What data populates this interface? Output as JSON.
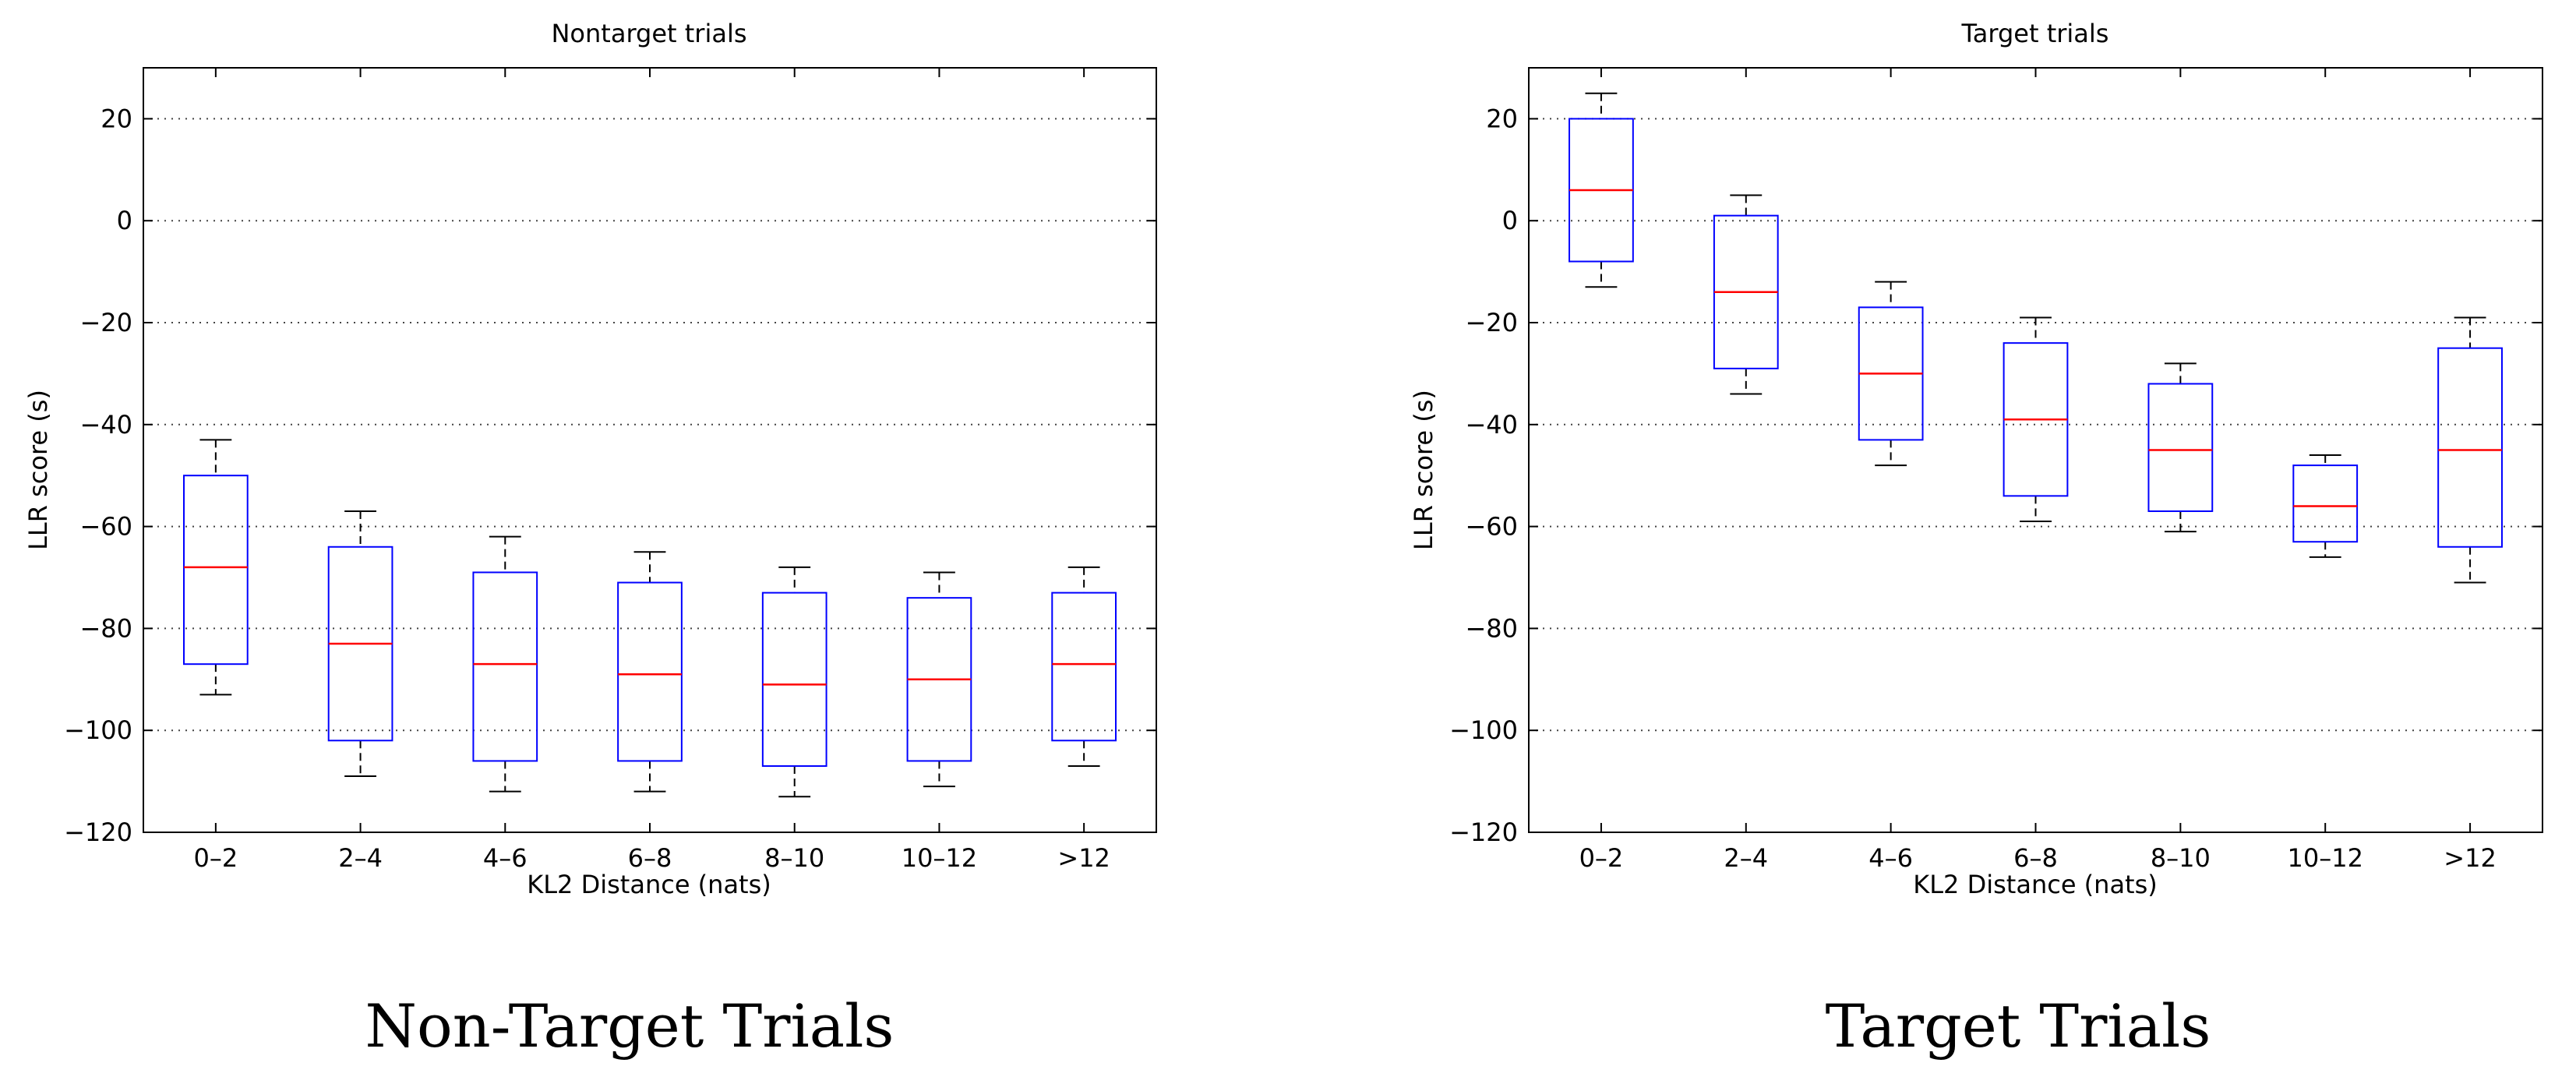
{
  "figure": {
    "captions": [
      "Non-Target Trials",
      "Target Trials"
    ]
  },
  "chart_data": [
    {
      "type": "box",
      "title": "Nontarget trials",
      "xlabel": "KL2 Distance (nats)",
      "ylabel": "LLR score (s)",
      "categories": [
        "0–2",
        "2–4",
        "4–6",
        "6–8",
        "8–10",
        "10–12",
        ">12"
      ],
      "ylim": [
        -120,
        30
      ],
      "yticks": [
        20,
        0,
        -20,
        -40,
        -60,
        -80,
        -100,
        -120
      ],
      "ytick_labels": [
        "20",
        "0",
        "−20",
        "−40",
        "−60",
        "−80",
        "−100",
        "−120"
      ],
      "grid": "horizontal dotted",
      "boxes": [
        {
          "whisker_low": -93,
          "q1": -87,
          "median": -68,
          "q3": -50,
          "whisker_high": -43
        },
        {
          "whisker_low": -109,
          "q1": -102,
          "median": -83,
          "q3": -64,
          "whisker_high": -57
        },
        {
          "whisker_low": -112,
          "q1": -106,
          "median": -87,
          "q3": -69,
          "whisker_high": -62
        },
        {
          "whisker_low": -112,
          "q1": -106,
          "median": -89,
          "q3": -71,
          "whisker_high": -65
        },
        {
          "whisker_low": -113,
          "q1": -107,
          "median": -91,
          "q3": -73,
          "whisker_high": -68
        },
        {
          "whisker_low": -111,
          "q1": -106,
          "median": -90,
          "q3": -74,
          "whisker_high": -69
        },
        {
          "whisker_low": -107,
          "q1": -102,
          "median": -87,
          "q3": -73,
          "whisker_high": -68
        }
      ],
      "colors": {
        "box": "#0000ff",
        "median": "#ff0000",
        "whisker": "#000000",
        "grid": "#444444"
      }
    },
    {
      "type": "box",
      "title": "Target trials",
      "xlabel": "KL2 Distance (nats)",
      "ylabel": "LLR score (s)",
      "categories": [
        "0–2",
        "2–4",
        "4–6",
        "6–8",
        "8–10",
        "10–12",
        ">12"
      ],
      "ylim": [
        -120,
        30
      ],
      "yticks": [
        20,
        0,
        -20,
        -40,
        -60,
        -80,
        -100,
        -120
      ],
      "ytick_labels": [
        "20",
        "0",
        "−20",
        "−40",
        "−60",
        "−80",
        "−100",
        "−120"
      ],
      "grid": "horizontal dotted",
      "boxes": [
        {
          "whisker_low": -13,
          "q1": -8,
          "median": 6,
          "q3": 20,
          "whisker_high": 25
        },
        {
          "whisker_low": -34,
          "q1": -29,
          "median": -14,
          "q3": 1,
          "whisker_high": 5
        },
        {
          "whisker_low": -48,
          "q1": -43,
          "median": -30,
          "q3": -17,
          "whisker_high": -12
        },
        {
          "whisker_low": -59,
          "q1": -54,
          "median": -39,
          "q3": -24,
          "whisker_high": -19
        },
        {
          "whisker_low": -61,
          "q1": -57,
          "median": -45,
          "q3": -32,
          "whisker_high": -28
        },
        {
          "whisker_low": -66,
          "q1": -63,
          "median": -56,
          "q3": -48,
          "whisker_high": -46
        },
        {
          "whisker_low": -71,
          "q1": -64,
          "median": -45,
          "q3": -25,
          "whisker_high": -19
        }
      ],
      "colors": {
        "box": "#0000ff",
        "median": "#ff0000",
        "whisker": "#000000",
        "grid": "#444444"
      }
    }
  ]
}
